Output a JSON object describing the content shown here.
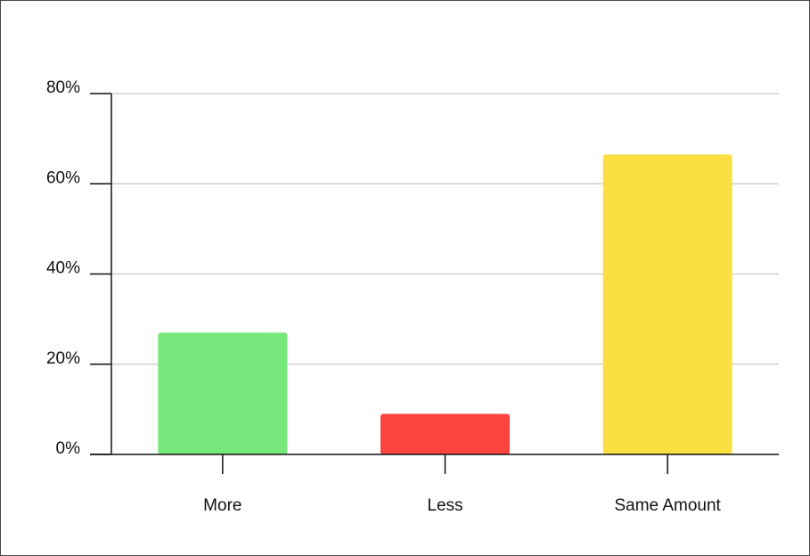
{
  "chart_data": {
    "type": "bar",
    "title": "",
    "xlabel": "",
    "ylabel": "",
    "categories": [
      "More",
      "Less",
      "Same Amount"
    ],
    "values": [
      27,
      9,
      66.5
    ],
    "colors": [
      "#77e87c",
      "#fc443f",
      "#fbdf43"
    ],
    "ylim": [
      0,
      80
    ],
    "yticks": [
      0,
      20,
      40,
      60,
      80
    ],
    "ytick_labels": [
      "0%",
      "20%",
      "40%",
      "60%",
      "80%"
    ],
    "grid": true,
    "grid_color": "#d2d2d2",
    "axis_color": "#111111",
    "legend": "none"
  }
}
